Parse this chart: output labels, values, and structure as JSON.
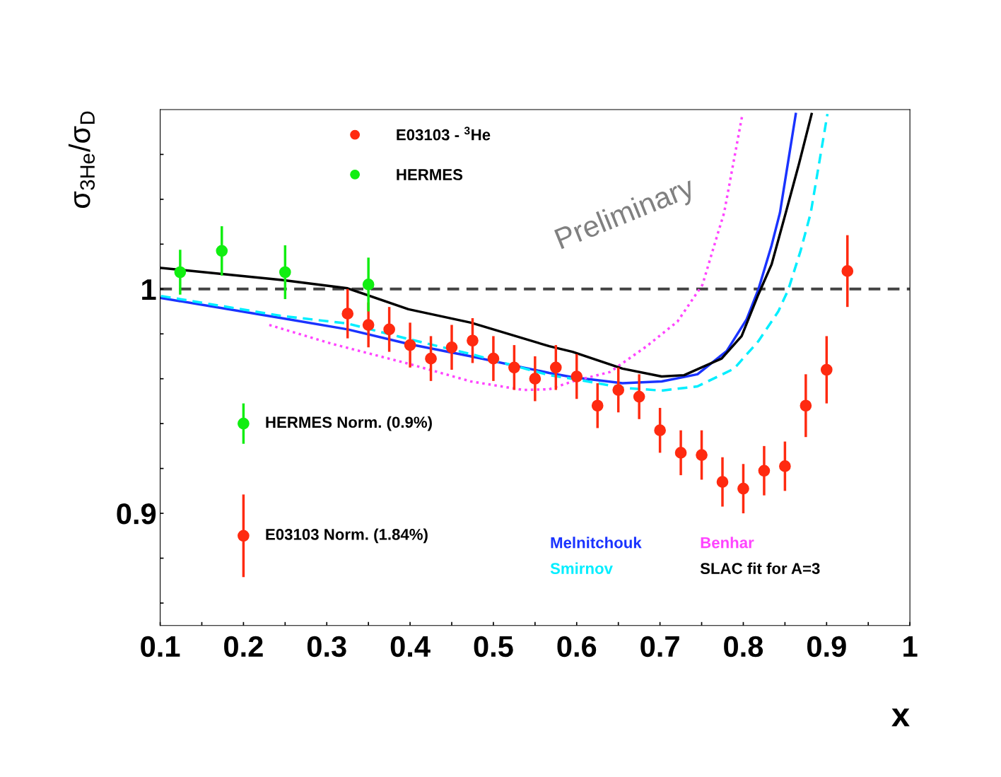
{
  "chart_data": {
    "type": "scatter",
    "xlabel": "x",
    "ylabel": "σ$_{3He}$/σ$_{D}$",
    "xlim": [
      0.1,
      1
    ],
    "ylim": [
      0.85,
      1.08
    ],
    "xticks": [
      0.1,
      {
        "value": 0.15,
        "label": null
      },
      0.2,
      {
        "value": 0.25,
        "label": null
      },
      0.3,
      {
        "value": 0.35,
        "label": null
      },
      0.4,
      {
        "value": 0.45,
        "label": null
      },
      0.5,
      {
        "value": 0.55,
        "label": null
      },
      0.6,
      {
        "value": 0.65,
        "label": null
      },
      0.7,
      {
        "value": 0.75,
        "label": null
      },
      0.8,
      {
        "value": 0.85,
        "label": null
      },
      0.9,
      {
        "value": 0.95,
        "label": null
      },
      1
    ],
    "yticks": [
      {
        "value": 0.86,
        "label": null
      },
      {
        "value": 0.88,
        "label": null
      },
      0.9,
      {
        "value": 0.92,
        "label": null
      },
      {
        "value": 0.94,
        "label": null
      },
      {
        "value": 0.96,
        "label": null
      },
      {
        "value": 0.98,
        "label": null
      },
      1,
      {
        "value": 1.02,
        "label": null
      },
      {
        "value": 1.04,
        "label": null
      },
      {
        "value": 1.06,
        "label": null
      }
    ],
    "grid": false,
    "legend": "top left",
    "ref_lines": [
      {
        "axis": "y",
        "value": 1,
        "color": "#444444",
        "line_style": "dashed"
      }
    ],
    "annotations": [
      "Preliminary",
      {
        "text": "HERMES Norm. (0.9%)",
        "x": 0.2,
        "y": 0.94
      },
      {
        "text": "E03103 Norm. (1.84%)",
        "x": 0.2,
        "y": 0.89
      }
    ],
    "series": [
      {
        "name": "E03103 - $^{3}$He",
        "marker": "circle",
        "color": "#ff2a10",
        "x": [
          0.325,
          0.35,
          0.375,
          0.4,
          0.425,
          0.45,
          0.475,
          0.5,
          0.525,
          0.55,
          0.575,
          0.6,
          0.625,
          0.65,
          0.675,
          0.7,
          0.725,
          0.75,
          0.775,
          0.8,
          0.825,
          0.85,
          0.875,
          0.9,
          0.925
        ],
        "values": [
          0.989,
          0.984,
          0.982,
          0.975,
          0.969,
          0.974,
          0.977,
          0.969,
          0.965,
          0.96,
          0.965,
          0.961,
          0.948,
          0.955,
          0.952,
          0.937,
          0.927,
          0.926,
          0.914,
          0.911,
          0.919,
          0.921,
          0.948,
          0.964,
          1.008
        ],
        "errors": [
          0.011,
          0.01,
          0.01,
          0.01,
          0.01,
          0.01,
          0.01,
          0.01,
          0.01,
          0.01,
          0.01,
          0.01,
          0.01,
          0.01,
          0.01,
          0.01,
          0.01,
          0.011,
          0.011,
          0.011,
          0.011,
          0.011,
          0.014,
          0.015,
          0.016
        ]
      },
      {
        "name": "HERMES",
        "marker": "circle",
        "color": "#11ee11",
        "x": [
          0.124,
          0.174,
          0.25,
          0.35
        ],
        "values": [
          1.0075,
          1.017,
          1.0075,
          1.002
        ],
        "errors": [
          0.01,
          0.011,
          0.012,
          0.012
        ]
      },
      {
        "marker": "circle",
        "color": "#11ee11",
        "x": [
          0.2
        ],
        "values": [
          0.94
        ],
        "errors": [
          0.009
        ]
      },
      {
        "marker": "circle",
        "color": "#ff2a10",
        "x": [
          0.2
        ],
        "values": [
          0.89
        ],
        "errors": [
          0.0184
        ]
      },
      {
        "name": "Melnitchouk",
        "type": "line",
        "line_style": "solid",
        "color": "#1a33ff",
        "x": [
          0.101,
          0.246,
          0.325,
          0.398,
          0.473,
          0.536,
          0.567,
          0.595,
          0.655,
          0.702,
          0.745,
          0.78,
          0.804,
          0.818,
          0.834,
          0.844,
          0.863
        ],
        "values": [
          0.996,
          0.987,
          0.982,
          0.9755,
          0.97,
          0.965,
          0.9626,
          0.9607,
          0.958,
          0.9588,
          0.962,
          0.9723,
          0.9865,
          0.9997,
          1.0195,
          1.034,
          1.078
        ]
      },
      {
        "name": "Smirnov",
        "type": "line",
        "line_style": "dashed",
        "color": "#00eeff",
        "x": [
          0.101,
          0.246,
          0.325,
          0.398,
          0.473,
          0.567,
          0.595,
          0.655,
          0.702,
          0.745,
          0.789,
          0.818,
          0.842,
          0.854,
          0.869,
          0.881,
          0.901
        ],
        "values": [
          0.9969,
          0.988,
          0.9846,
          0.9777,
          0.971,
          0.9616,
          0.96,
          0.956,
          0.9547,
          0.9566,
          0.9645,
          0.9767,
          0.99,
          0.9997,
          1.0173,
          1.034,
          1.078
        ]
      },
      {
        "name": "Benhar",
        "type": "line",
        "line_style": "dotted",
        "color": "#ff44ff",
        "x": [
          0.231,
          0.307,
          0.398,
          0.473,
          0.536,
          0.567,
          0.595,
          0.64,
          0.684,
          0.721,
          0.751,
          0.768,
          0.777,
          0.799
        ],
        "values": [
          0.984,
          0.9755,
          0.9667,
          0.9588,
          0.955,
          0.9553,
          0.9588,
          0.963,
          0.9745,
          0.9855,
          1.0019,
          1.023,
          1.034,
          1.078
        ]
      },
      {
        "name": "SLAC fit for A=3",
        "type": "line",
        "line_style": "solid",
        "color": "#000000",
        "x": [
          0.101,
          0.246,
          0.325,
          0.398,
          0.473,
          0.567,
          0.595,
          0.655,
          0.702,
          0.729,
          0.774,
          0.798,
          0.818,
          0.834,
          0.851,
          0.867,
          0.882
        ],
        "values": [
          1.0094,
          1.004,
          1.0003,
          0.991,
          0.985,
          0.9745,
          0.972,
          0.9645,
          0.961,
          0.9616,
          0.969,
          0.979,
          0.9975,
          1.011,
          1.034,
          1.056,
          1.078
        ]
      }
    ]
  }
}
